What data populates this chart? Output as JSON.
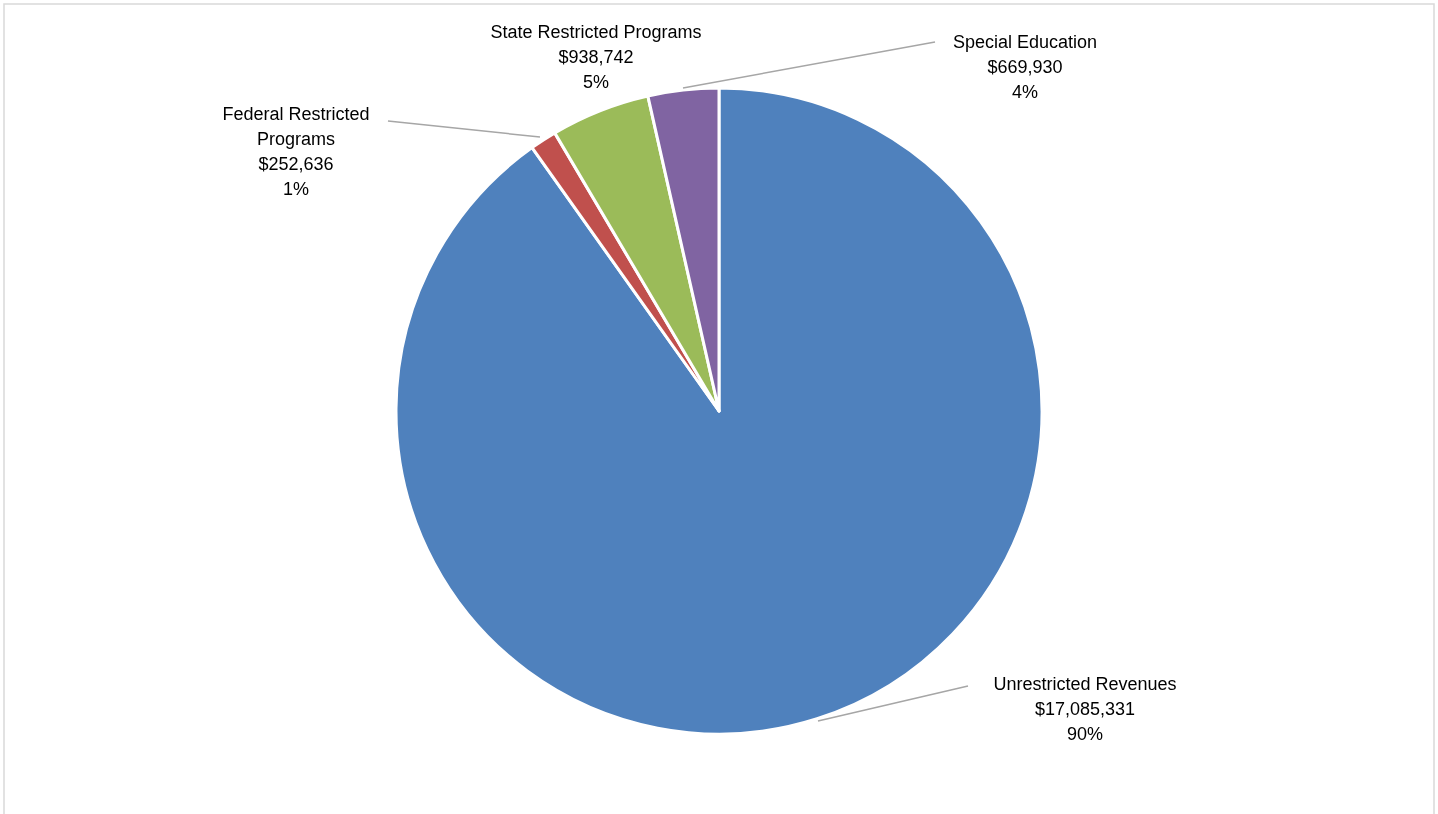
{
  "chart_data": {
    "type": "pie",
    "categories": [
      "Unrestricted Revenues",
      "Federal Restricted Programs",
      "State Restricted Programs",
      "Special Education"
    ],
    "values": [
      17085331,
      252636,
      938742,
      669930
    ],
    "colors": [
      "#4f81bd",
      "#c0504d",
      "#9bbb59",
      "#8064a2"
    ],
    "value_labels": [
      "$17,085,331\n90%",
      "$252,636\n1%",
      "$938,742\n5%",
      "$669,930\n4%"
    ]
  }
}
